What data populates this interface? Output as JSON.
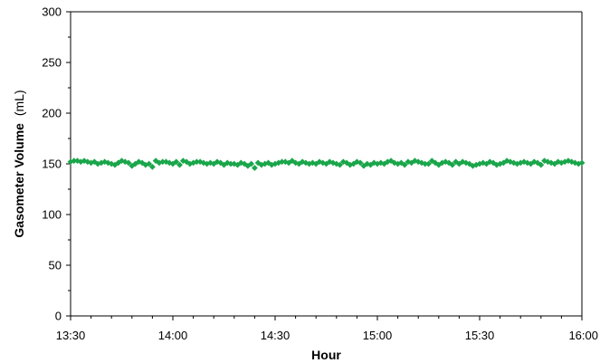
{
  "chart_data": {
    "type": "scatter",
    "title": "",
    "xlabel": "Hour",
    "ylabel_bold": "Gasometer Volume",
    "ylabel_unit": "(mL)",
    "xlim": [
      810,
      960
    ],
    "ylim": [
      0,
      300
    ],
    "x_ticks": [
      {
        "value": 810,
        "label": "13:30"
      },
      {
        "value": 840,
        "label": "14:00"
      },
      {
        "value": 870,
        "label": "14:30"
      },
      {
        "value": 900,
        "label": "15:00"
      },
      {
        "value": 930,
        "label": "15:30"
      },
      {
        "value": 960,
        "label": "16:00"
      }
    ],
    "y_ticks": [
      {
        "value": 0,
        "label": "0"
      },
      {
        "value": 50,
        "label": "50"
      },
      {
        "value": 100,
        "label": "100"
      },
      {
        "value": 150,
        "label": "150"
      },
      {
        "value": 200,
        "label": "200"
      },
      {
        "value": 250,
        "label": "250"
      },
      {
        "value": 300,
        "label": "300"
      }
    ],
    "grid": false,
    "legend": "none",
    "marker_color": "#1aa64a",
    "marker_shape": "diamond",
    "series": [
      {
        "x": [
          810,
          811,
          812,
          813,
          814,
          815,
          816,
          817,
          818,
          819,
          820,
          821,
          822,
          823,
          824,
          825,
          826,
          827,
          828,
          829,
          830,
          831,
          832,
          833,
          834,
          835,
          836,
          837,
          838,
          839,
          840,
          841,
          842,
          843,
          844,
          845,
          846,
          847,
          848,
          849,
          850,
          851,
          852,
          853,
          854,
          855,
          856,
          857,
          858,
          859,
          860,
          861,
          862,
          863,
          864,
          865,
          866,
          867,
          868,
          869,
          870,
          871,
          872,
          873,
          874,
          875,
          876,
          877,
          878,
          879,
          880,
          881,
          882,
          883,
          884,
          885,
          886,
          887,
          888,
          889,
          890,
          891,
          892,
          893,
          894,
          895,
          896,
          897,
          898,
          899,
          900,
          901,
          902,
          903,
          904,
          905,
          906,
          907,
          908,
          909,
          910,
          911,
          912,
          913,
          914,
          915,
          916,
          917,
          918,
          919,
          920,
          921,
          922,
          923,
          924,
          925,
          926,
          927,
          928,
          929,
          930,
          931,
          932,
          933,
          934,
          935,
          936,
          937,
          938,
          939,
          940,
          941,
          942,
          943,
          944,
          945,
          946,
          947,
          948,
          949,
          950,
          951,
          952,
          953,
          954,
          955,
          956,
          957,
          958,
          959,
          960
        ],
        "values": [
          152,
          153,
          153,
          152,
          153,
          152,
          151,
          152,
          150,
          151,
          152,
          151,
          150,
          149,
          151,
          153,
          152,
          151,
          148,
          150,
          152,
          151,
          149,
          150,
          147,
          153,
          151,
          152,
          152,
          151,
          150,
          152,
          149,
          153,
          152,
          150,
          151,
          152,
          152,
          151,
          150,
          151,
          150,
          152,
          151,
          149,
          151,
          150,
          150,
          149,
          151,
          150,
          148,
          150,
          146,
          151,
          149,
          150,
          151,
          149,
          150,
          151,
          152,
          152,
          151,
          153,
          151,
          150,
          152,
          151,
          150,
          151,
          150,
          152,
          151,
          150,
          152,
          151,
          150,
          149,
          152,
          151,
          149,
          150,
          152,
          151,
          148,
          150,
          149,
          151,
          150,
          151,
          150,
          152,
          153,
          151,
          150,
          151,
          149,
          152,
          151,
          153,
          152,
          151,
          150,
          150,
          153,
          151,
          149,
          151,
          152,
          151,
          149,
          152,
          150,
          152,
          151,
          150,
          148,
          149,
          150,
          151,
          150,
          152,
          151,
          149,
          150,
          151,
          153,
          152,
          151,
          150,
          151,
          152,
          151,
          150,
          152,
          151,
          149,
          153,
          152,
          151,
          150,
          152,
          151,
          152,
          153,
          152,
          151,
          150,
          151
        ]
      }
    ]
  }
}
